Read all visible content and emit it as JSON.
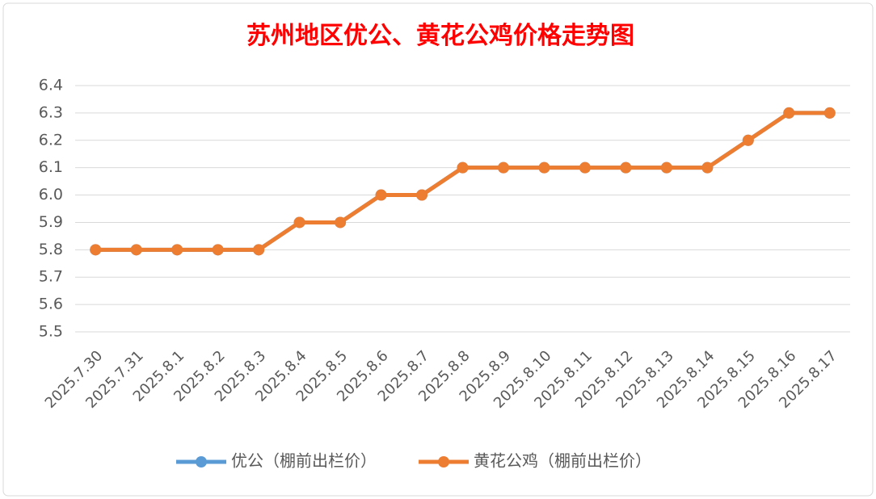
{
  "chart_data": {
    "type": "line",
    "title": "苏州地区优公、黄花公鸡价格走势图",
    "categories": [
      "2025.7.30",
      "2025.7.31",
      "2025.8.1",
      "2025.8.2",
      "2025.8.3",
      "2025.8.4",
      "2025.8.5",
      "2025.8.6",
      "2025.8.7",
      "2025.8.8",
      "2025.8.9",
      "2025.8.10",
      "2025.8.11",
      "2025.8.12",
      "2025.8.13",
      "2025.8.14",
      "2025.8.15",
      "2025.8.16",
      "2025.8.17"
    ],
    "series": [
      {
        "name": "优公（棚前出栏价）",
        "color": "#5b9bd5",
        "values": [
          5.8,
          5.8,
          5.8,
          5.8,
          5.8,
          5.9,
          5.9,
          6.0,
          6.0,
          6.1,
          6.1,
          6.1,
          6.1,
          6.1,
          6.1,
          6.1,
          6.2,
          6.3,
          6.3
        ]
      },
      {
        "name": "黄花公鸡（棚前出栏价）",
        "color": "#ed7d31",
        "values": [
          5.8,
          5.8,
          5.8,
          5.8,
          5.8,
          5.9,
          5.9,
          6.0,
          6.0,
          6.1,
          6.1,
          6.1,
          6.1,
          6.1,
          6.1,
          6.1,
          6.2,
          6.3,
          6.3
        ]
      }
    ],
    "ylim": [
      5.5,
      6.4
    ],
    "yticks": [
      5.5,
      5.6,
      5.7,
      5.8,
      5.9,
      {
        "value": 6.0,
        "label": "6.0"
      },
      6.1,
      6.2,
      6.3,
      6.4
    ],
    "grid": true,
    "legend": "bottom"
  }
}
